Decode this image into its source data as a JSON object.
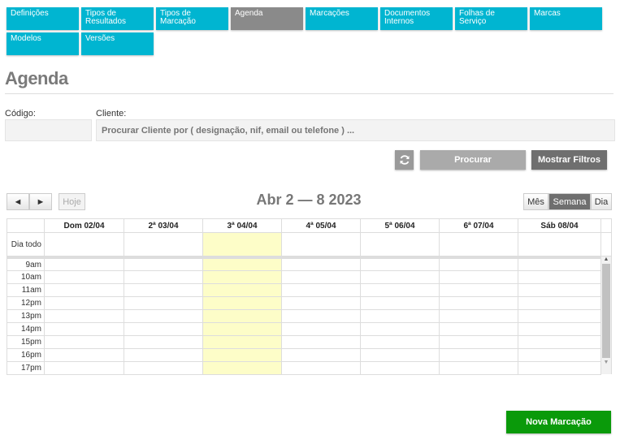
{
  "nav": [
    {
      "label": "Definições"
    },
    {
      "label": "Tipos de Resultados"
    },
    {
      "label": "Tipos de Marcação"
    },
    {
      "label": "Agenda",
      "active": true
    },
    {
      "label": "Marcações"
    },
    {
      "label": "Documentos Internos"
    },
    {
      "label": "Folhas de Serviço"
    },
    {
      "label": "Marcas"
    },
    {
      "label": "Modelos"
    },
    {
      "label": "Versões"
    }
  ],
  "page_title": "Agenda",
  "filters": {
    "codigo_label": "Código:",
    "codigo_value": "",
    "cliente_label": "Cliente:",
    "cliente_placeholder": "Procurar Cliente por ( designação, nif, email ou telefone ) ..."
  },
  "buttons": {
    "refresh_icon": "refresh-icon",
    "search": "Procurar",
    "show_filters": "Mostrar Filtros",
    "new": "Nova Marcação"
  },
  "calendar": {
    "prev": "◄",
    "next": "►",
    "today": "Hoje",
    "title": "Abr 2 — 8 2023",
    "views": [
      "Mês",
      "Semana",
      "Dia"
    ],
    "active_view": "Semana",
    "days": [
      "Dom 02/04",
      "2ª 03/04",
      "3ª 04/04",
      "4ª 05/04",
      "5ª 06/04",
      "6ª 07/04",
      "Sáb 08/04"
    ],
    "today_index": 2,
    "all_day": "Dia todo",
    "hours": [
      "9am",
      "10am",
      "11am",
      "12pm",
      "13pm",
      "14pm",
      "15pm",
      "16pm",
      "17pm"
    ]
  },
  "colors": {
    "accent": "#00b5d1",
    "active": "#8a8a8a",
    "today": "#fdfdc8",
    "new_button": "#0a9a0a"
  }
}
